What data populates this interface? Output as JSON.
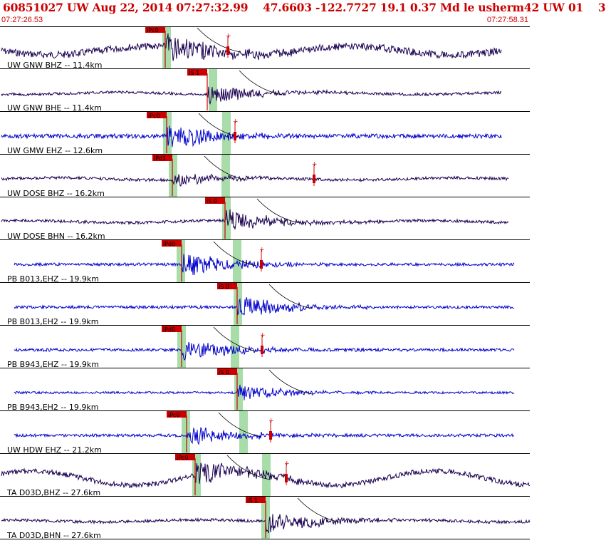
{
  "header": {
    "title": "60851027 UW Aug 22, 2014 07:27:32.99    47.6603 -122.7727 19.1 0.37 Md le usherm42 UW 01    3",
    "time_start": "07:27:26.53",
    "time_end": "07:27:58.31"
  },
  "colors": {
    "accent": "#cc0000",
    "trace_blue": "#0000cc",
    "trace_dark": "#1a0050",
    "pick_window": "#a8dca8",
    "divider": "#000000"
  },
  "traces": [
    {
      "label": "UW GNW BHZ -- 11.4km",
      "pick": "IPc0",
      "color": "dark"
    },
    {
      "label": "UW GNW BHE -- 11.4km",
      "pick": "IS 1",
      "color": "dark"
    },
    {
      "label": "UW GMW EHZ -- 12.6km",
      "pick": "iPc0",
      "color": "blue"
    },
    {
      "label": "UW DOSE BHZ -- 16.2km",
      "pick": "iPd1",
      "color": "dark"
    },
    {
      "label": "UW DOSE BHN -- 16.2km",
      "pick": "iS 0",
      "color": "dark"
    },
    {
      "label": "PB B013,EHZ -- 19.9km",
      "pick": "iPd0",
      "color": "blue"
    },
    {
      "label": "PB B013,EH2 -- 19.9km",
      "pick": "iS 0",
      "color": "blue"
    },
    {
      "label": "PB B943,EHZ -- 19.9km",
      "pick": "iPd0",
      "color": "blue"
    },
    {
      "label": "PB B943,EH2 -- 19.9km",
      "pick": "iS 0",
      "color": "blue"
    },
    {
      "label": "UW HDW EHZ -- 21.2km",
      "pick": "iPc0",
      "color": "blue"
    },
    {
      "label": "TA D03D,BHZ -- 27.6km",
      "pick": "iPc0",
      "color": "dark"
    },
    {
      "label": "TA D03D,BHN -- 27.6km",
      "pick": "iS 1",
      "color": "dark"
    }
  ]
}
